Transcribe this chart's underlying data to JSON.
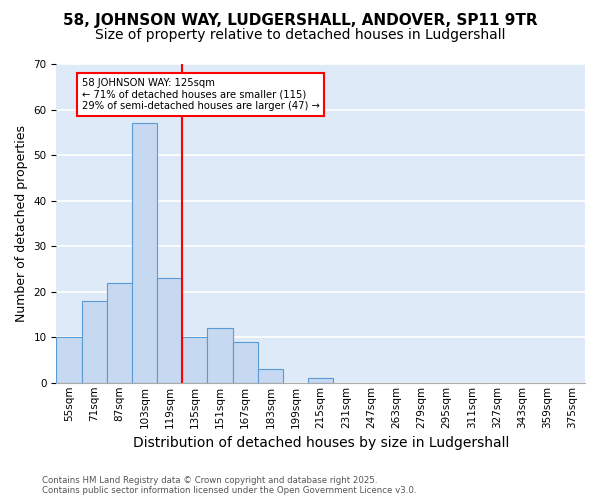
{
  "title1": "58, JOHNSON WAY, LUDGERSHALL, ANDOVER, SP11 9TR",
  "title2": "Size of property relative to detached houses in Ludgershall",
  "xlabel": "Distribution of detached houses by size in Ludgershall",
  "ylabel": "Number of detached properties",
  "bin_labels": [
    "55sqm",
    "71sqm",
    "87sqm",
    "103sqm",
    "119sqm",
    "135sqm",
    "151sqm",
    "167sqm",
    "183sqm",
    "199sqm",
    "215sqm",
    "231sqm",
    "247sqm",
    "263sqm",
    "279sqm",
    "295sqm",
    "311sqm",
    "327sqm",
    "343sqm",
    "359sqm",
    "375sqm"
  ],
  "bar_values": [
    10,
    18,
    22,
    57,
    23,
    10,
    12,
    9,
    3,
    0,
    1,
    0,
    0,
    0,
    0,
    0,
    0,
    0,
    0,
    0,
    0
  ],
  "bar_color": "#c6d9f1",
  "bar_edge_color": "#5b9bd5",
  "vline_x": 4,
  "annotation_text": "58 JOHNSON WAY: 125sqm\n← 71% of detached houses are smaller (115)\n29% of semi-detached houses are larger (47) →",
  "annotation_box_color": "white",
  "annotation_box_edge": "red",
  "vline_color": "red",
  "footer1": "Contains HM Land Registry data © Crown copyright and database right 2025.",
  "footer2": "Contains public sector information licensed under the Open Government Licence v3.0.",
  "ylim": [
    0,
    70
  ],
  "yticks": [
    0,
    10,
    20,
    30,
    40,
    50,
    60,
    70
  ],
  "background_color": "#deeaf7",
  "grid_color": "white",
  "title1_fontsize": 11,
  "title2_fontsize": 10,
  "xlabel_fontsize": 10,
  "ylabel_fontsize": 9,
  "tick_fontsize": 7.5
}
